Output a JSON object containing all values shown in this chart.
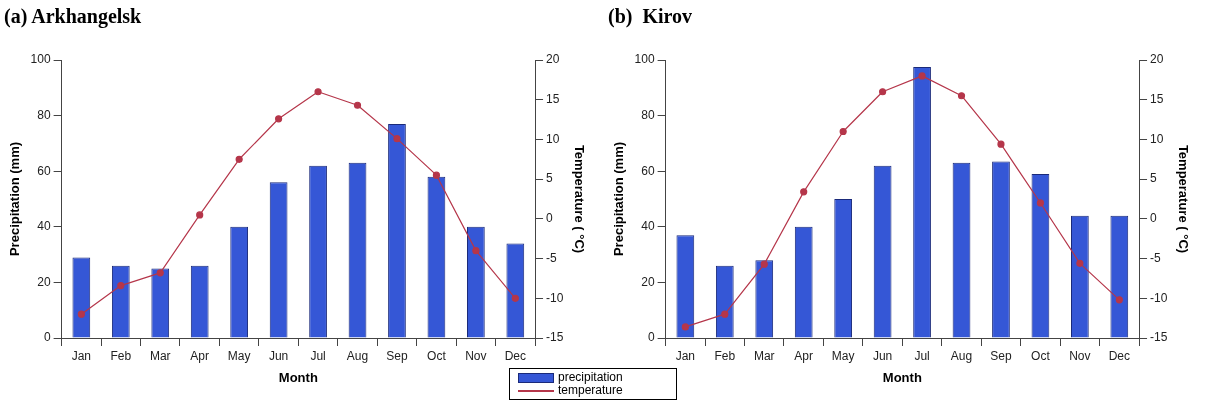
{
  "chart_data": [
    {
      "type": "bar",
      "title": "(a) Arkhangelsk",
      "xlabel": "Month",
      "ylabel": "Precipitation (mm)",
      "y2label": "Temperature ( °C)",
      "categories": [
        "Jan",
        "Feb",
        "Mar",
        "Apr",
        "May",
        "Jun",
        "Jul",
        "Aug",
        "Sep",
        "Oct",
        "Nov",
        "Dec"
      ],
      "series": [
        {
          "name": "precipitation",
          "color": "#3557d6",
          "values": [
            29,
            26,
            25,
            26,
            40,
            56,
            62,
            63,
            77,
            58,
            40,
            34
          ]
        },
        {
          "name": "temperature",
          "type": "line",
          "axis": "y2",
          "color": "#b5364a",
          "values": [
            -12,
            -8.4,
            -6.8,
            0.5,
            7.5,
            12.6,
            16,
            14.3,
            10.1,
            5.5,
            -4,
            -10
          ]
        }
      ],
      "ylim": [
        0,
        100
      ],
      "yticks": [
        0,
        20,
        40,
        60,
        80,
        100
      ],
      "y2lim": [
        -15,
        20
      ],
      "y2ticks": [
        -15,
        -10,
        -5,
        0,
        5,
        10,
        15,
        20
      ],
      "grid": false,
      "legend": "bottom right",
      "marker": "circle"
    },
    {
      "type": "bar",
      "title": "(b)  Kirov",
      "xlabel": "Month",
      "ylabel": "Precipitation (mm)",
      "y2label": "Temperature ( °C)",
      "categories": [
        "Jan",
        "Feb",
        "Mar",
        "Apr",
        "May",
        "Jun",
        "Jul",
        "Aug",
        "Sep",
        "Oct",
        "Nov",
        "Dec"
      ],
      "series": [
        {
          "color": "#3557d6",
          "values": [
            37,
            26,
            28,
            40,
            50,
            62,
            97.5,
            63,
            63.5,
            59,
            44,
            44
          ]
        },
        {
          "type": "line",
          "axis": "y2",
          "color": "#b5364a",
          "values": [
            -13.6,
            -12,
            -5.7,
            3.4,
            11,
            16,
            18,
            15.5,
            9.4,
            2,
            -5.6,
            -10.2
          ]
        }
      ],
      "ylim": [
        0,
        100
      ],
      "yticks": [
        0,
        20,
        40,
        60,
        80,
        100
      ],
      "y2lim": [
        -15,
        20
      ],
      "y2ticks": [
        -15,
        -10,
        -5,
        0,
        5,
        10,
        15,
        20
      ],
      "grid": false,
      "legend": false,
      "marker": "circle"
    }
  ]
}
